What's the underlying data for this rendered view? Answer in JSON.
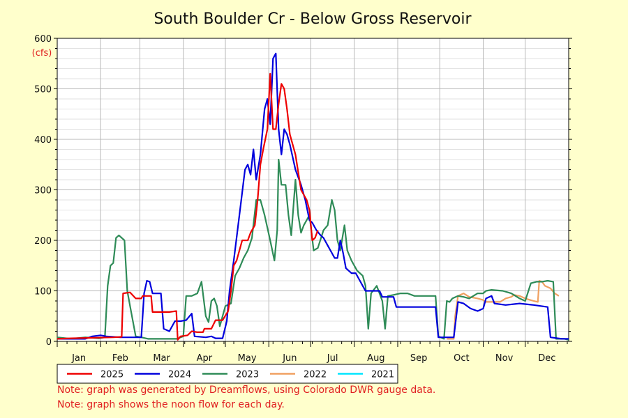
{
  "chart_data": {
    "type": "line",
    "title": "South Boulder Cr - Below Gross Reservoir",
    "ylabel": "(cfs)",
    "ylim": [
      0,
      600
    ],
    "yticks": [
      0,
      100,
      200,
      300,
      400,
      500,
      600
    ],
    "xlim": [
      0,
      365
    ],
    "months": [
      {
        "label": "Jan",
        "start": 0
      },
      {
        "label": "Feb",
        "start": 31
      },
      {
        "label": "Mar",
        "start": 59
      },
      {
        "label": "Apr",
        "start": 90
      },
      {
        "label": "May",
        "start": 120
      },
      {
        "label": "Jun",
        "start": 151
      },
      {
        "label": "Jul",
        "start": 181
      },
      {
        "label": "Aug",
        "start": 212
      },
      {
        "label": "Sep",
        "start": 243
      },
      {
        "label": "Oct",
        "start": 273
      },
      {
        "label": "Nov",
        "start": 304
      },
      {
        "label": "Dec",
        "start": 334
      }
    ],
    "grid": true,
    "legend_position": "bottom",
    "x_units": "day of year",
    "series": [
      {
        "name": "2025",
        "color": "#ee0000",
        "points": [
          [
            0,
            5
          ],
          [
            10,
            6
          ],
          [
            25,
            7
          ],
          [
            40,
            8
          ],
          [
            46,
            9
          ],
          [
            47,
            95
          ],
          [
            52,
            97
          ],
          [
            56,
            85
          ],
          [
            60,
            85
          ],
          [
            61,
            90
          ],
          [
            67,
            90
          ],
          [
            68,
            58
          ],
          [
            80,
            58
          ],
          [
            85,
            60
          ],
          [
            86,
            3
          ],
          [
            88,
            10
          ],
          [
            93,
            12
          ],
          [
            96,
            20
          ],
          [
            100,
            18
          ],
          [
            104,
            18
          ],
          [
            105,
            25
          ],
          [
            110,
            25
          ],
          [
            113,
            42
          ],
          [
            118,
            42
          ],
          [
            122,
            60
          ],
          [
            124,
            100
          ],
          [
            126,
            150
          ],
          [
            128,
            160
          ],
          [
            132,
            200
          ],
          [
            136,
            200
          ],
          [
            138,
            215
          ],
          [
            141,
            230
          ],
          [
            143,
            280
          ],
          [
            145,
            350
          ],
          [
            147,
            380
          ],
          [
            150,
            420
          ],
          [
            152,
            530
          ],
          [
            154,
            420
          ],
          [
            156,
            420
          ],
          [
            158,
            470
          ],
          [
            160,
            510
          ],
          [
            162,
            500
          ],
          [
            164,
            460
          ],
          [
            166,
            410
          ],
          [
            170,
            370
          ],
          [
            174,
            300
          ],
          [
            178,
            280
          ],
          [
            180,
            260
          ],
          [
            182,
            200
          ],
          [
            184,
            205
          ],
          [
            186,
            220
          ]
        ]
      },
      {
        "name": "2024",
        "color": "#0000dd",
        "points": [
          [
            0,
            5
          ],
          [
            20,
            5
          ],
          [
            25,
            10
          ],
          [
            31,
            12
          ],
          [
            35,
            10
          ],
          [
            45,
            8
          ],
          [
            60,
            8
          ],
          [
            62,
            95
          ],
          [
            64,
            120
          ],
          [
            66,
            118
          ],
          [
            68,
            95
          ],
          [
            72,
            95
          ],
          [
            74,
            95
          ],
          [
            76,
            25
          ],
          [
            80,
            20
          ],
          [
            84,
            40
          ],
          [
            88,
            40
          ],
          [
            92,
            42
          ],
          [
            96,
            55
          ],
          [
            98,
            10
          ],
          [
            106,
            8
          ],
          [
            110,
            10
          ],
          [
            113,
            6
          ],
          [
            118,
            6
          ],
          [
            121,
            40
          ],
          [
            123,
            100
          ],
          [
            126,
            160
          ],
          [
            130,
            250
          ],
          [
            134,
            340
          ],
          [
            136,
            350
          ],
          [
            138,
            330
          ],
          [
            140,
            380
          ],
          [
            142,
            320
          ],
          [
            145,
            370
          ],
          [
            148,
            460
          ],
          [
            150,
            480
          ],
          [
            152,
            430
          ],
          [
            154,
            560
          ],
          [
            156,
            570
          ],
          [
            158,
            420
          ],
          [
            160,
            370
          ],
          [
            162,
            420
          ],
          [
            164,
            410
          ],
          [
            166,
            390
          ],
          [
            170,
            340
          ],
          [
            174,
            310
          ],
          [
            177,
            280
          ],
          [
            180,
            240
          ],
          [
            182,
            235
          ],
          [
            185,
            220
          ],
          [
            188,
            210
          ],
          [
            190,
            205
          ],
          [
            193,
            190
          ],
          [
            196,
            175
          ],
          [
            198,
            165
          ],
          [
            200,
            165
          ],
          [
            202,
            200
          ],
          [
            204,
            175
          ],
          [
            206,
            145
          ],
          [
            210,
            135
          ],
          [
            213,
            135
          ],
          [
            216,
            120
          ],
          [
            218,
            110
          ],
          [
            220,
            100
          ],
          [
            230,
            100
          ],
          [
            232,
            88
          ],
          [
            240,
            88
          ],
          [
            242,
            68
          ],
          [
            250,
            68
          ],
          [
            270,
            68
          ],
          [
            272,
            8
          ],
          [
            283,
            8
          ],
          [
            286,
            78
          ],
          [
            290,
            75
          ],
          [
            295,
            65
          ],
          [
            300,
            60
          ],
          [
            304,
            65
          ],
          [
            306,
            85
          ],
          [
            310,
            90
          ],
          [
            312,
            75
          ],
          [
            320,
            72
          ],
          [
            330,
            75
          ],
          [
            340,
            72
          ],
          [
            350,
            68
          ],
          [
            352,
            8
          ],
          [
            360,
            5
          ],
          [
            365,
            5
          ]
        ]
      },
      {
        "name": "2023",
        "color": "#2e8b57",
        "points": [
          [
            0,
            8
          ],
          [
            10,
            5
          ],
          [
            20,
            8
          ],
          [
            30,
            6
          ],
          [
            34,
            8
          ],
          [
            36,
            110
          ],
          [
            38,
            150
          ],
          [
            40,
            155
          ],
          [
            42,
            205
          ],
          [
            44,
            210
          ],
          [
            48,
            200
          ],
          [
            50,
            100
          ],
          [
            52,
            70
          ],
          [
            56,
            10
          ],
          [
            60,
            8
          ],
          [
            65,
            5
          ],
          [
            75,
            5
          ],
          [
            86,
            5
          ],
          [
            88,
            8
          ],
          [
            90,
            10
          ],
          [
            92,
            90
          ],
          [
            96,
            90
          ],
          [
            100,
            95
          ],
          [
            103,
            118
          ],
          [
            106,
            50
          ],
          [
            108,
            38
          ],
          [
            110,
            80
          ],
          [
            112,
            85
          ],
          [
            114,
            70
          ],
          [
            116,
            30
          ],
          [
            120,
            70
          ],
          [
            124,
            75
          ],
          [
            127,
            130
          ],
          [
            130,
            145
          ],
          [
            133,
            165
          ],
          [
            136,
            180
          ],
          [
            139,
            205
          ],
          [
            142,
            280
          ],
          [
            145,
            280
          ],
          [
            148,
            250
          ],
          [
            152,
            200
          ],
          [
            155,
            160
          ],
          [
            157,
            220
          ],
          [
            158,
            360
          ],
          [
            160,
            310
          ],
          [
            163,
            310
          ],
          [
            165,
            250
          ],
          [
            167,
            210
          ],
          [
            170,
            320
          ],
          [
            172,
            250
          ],
          [
            174,
            215
          ],
          [
            176,
            230
          ],
          [
            180,
            250
          ],
          [
            183,
            180
          ],
          [
            186,
            185
          ],
          [
            190,
            220
          ],
          [
            193,
            230
          ],
          [
            196,
            280
          ],
          [
            198,
            260
          ],
          [
            200,
            200
          ],
          [
            202,
            180
          ],
          [
            205,
            230
          ],
          [
            207,
            180
          ],
          [
            210,
            160
          ],
          [
            214,
            140
          ],
          [
            218,
            130
          ],
          [
            220,
            110
          ],
          [
            222,
            25
          ],
          [
            224,
            95
          ],
          [
            228,
            110
          ],
          [
            232,
            80
          ],
          [
            234,
            25
          ],
          [
            236,
            90
          ],
          [
            240,
            92
          ],
          [
            245,
            95
          ],
          [
            250,
            95
          ],
          [
            255,
            90
          ],
          [
            270,
            90
          ],
          [
            272,
            10
          ],
          [
            276,
            5
          ],
          [
            278,
            80
          ],
          [
            280,
            78
          ],
          [
            282,
            85
          ],
          [
            286,
            90
          ],
          [
            290,
            88
          ],
          [
            294,
            85
          ],
          [
            300,
            95
          ],
          [
            304,
            95
          ],
          [
            306,
            100
          ],
          [
            310,
            102
          ],
          [
            318,
            100
          ],
          [
            324,
            95
          ],
          [
            330,
            85
          ],
          [
            334,
            80
          ],
          [
            338,
            115
          ],
          [
            342,
            118
          ],
          [
            346,
            118
          ],
          [
            350,
            120
          ],
          [
            354,
            118
          ],
          [
            356,
            5
          ],
          [
            362,
            5
          ],
          [
            365,
            3
          ]
        ]
      },
      {
        "name": "2022",
        "color": "#f0a060",
        "points": [
          [
            278,
            5
          ],
          [
            283,
            5
          ],
          [
            284,
            50
          ],
          [
            286,
            90
          ],
          [
            290,
            95
          ],
          [
            294,
            88
          ],
          [
            300,
            85
          ],
          [
            304,
            82
          ],
          [
            306,
            78
          ],
          [
            316,
            78
          ],
          [
            320,
            85
          ],
          [
            324,
            88
          ],
          [
            326,
            92
          ],
          [
            330,
            90
          ],
          [
            334,
            85
          ],
          [
            340,
            80
          ],
          [
            343,
            78
          ],
          [
            344,
            120
          ],
          [
            346,
            118
          ],
          [
            348,
            110
          ],
          [
            352,
            105
          ],
          [
            355,
            95
          ],
          [
            358,
            90
          ]
        ]
      },
      {
        "name": "2021",
        "color": "#00e5ff",
        "points": []
      }
    ]
  },
  "notes": [
    "Note: graph was generated by Dreamflows, using Colorado DWR gauge data.",
    "Note: graph shows the noon flow for each day."
  ]
}
